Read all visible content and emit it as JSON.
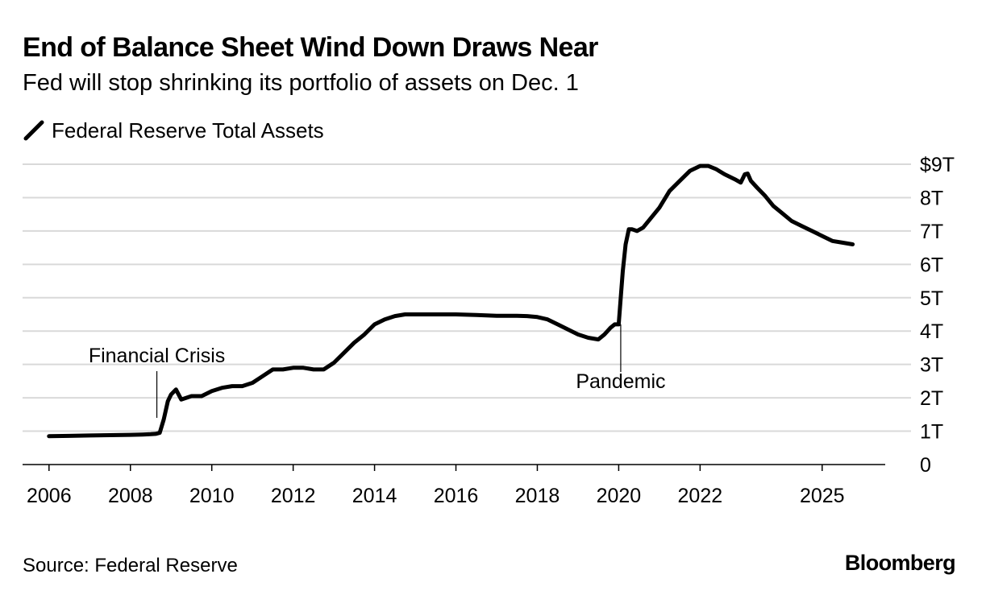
{
  "chart_data": {
    "type": "line",
    "title": "End of Balance Sheet Wind Down Draws Near",
    "subtitle": "Fed will stop shrinking its portfolio of assets on Dec. 1",
    "legend": [
      "Federal Reserve Total Assets"
    ],
    "legend_position": "top-left",
    "grid": true,
    "xlabel": "",
    "ylabel": "",
    "x_ticks": [
      {
        "value": 2006,
        "label": "2006"
      },
      {
        "value": 2008,
        "label": "2008"
      },
      {
        "value": 2010,
        "label": "2010"
      },
      {
        "value": 2012,
        "label": "2012"
      },
      {
        "value": 2014,
        "label": "2014"
      },
      {
        "value": 2016,
        "label": "2016"
      },
      {
        "value": 2018,
        "label": "2018"
      },
      {
        "value": 2020,
        "label": "2020"
      },
      {
        "value": 2022,
        "label": "2022"
      },
      {
        "value": 2025,
        "label": "2025"
      }
    ],
    "y_ticks": [
      {
        "value": 0,
        "label": "0"
      },
      {
        "value": 1,
        "label": "1T"
      },
      {
        "value": 2,
        "label": "2T"
      },
      {
        "value": 3,
        "label": "3T"
      },
      {
        "value": 4,
        "label": "4T"
      },
      {
        "value": 5,
        "label": "5T"
      },
      {
        "value": 6,
        "label": "6T"
      },
      {
        "value": 7,
        "label": "7T"
      },
      {
        "value": 8,
        "label": "8T"
      },
      {
        "value": 9,
        "label": "$9T"
      }
    ],
    "xlim": [
      2005.35,
      2026.55
    ],
    "ylim": [
      0,
      9
    ],
    "series": [
      {
        "name": "Federal Reserve Total Assets",
        "x": [
          2006.0,
          2006.5,
          2007.0,
          2007.5,
          2008.0,
          2008.3,
          2008.5,
          2008.62,
          2008.72,
          2008.82,
          2008.92,
          2009.0,
          2009.12,
          2009.25,
          2009.5,
          2009.75,
          2010.0,
          2010.25,
          2010.5,
          2010.75,
          2011.0,
          2011.25,
          2011.5,
          2011.75,
          2012.0,
          2012.25,
          2012.5,
          2012.75,
          2013.0,
          2013.25,
          2013.5,
          2013.75,
          2014.0,
          2014.25,
          2014.5,
          2014.75,
          2015.0,
          2015.5,
          2016.0,
          2016.5,
          2017.0,
          2017.5,
          2017.75,
          2018.0,
          2018.25,
          2018.5,
          2018.75,
          2019.0,
          2019.25,
          2019.5,
          2019.65,
          2019.8,
          2019.9,
          2020.0,
          2020.1,
          2020.17,
          2020.25,
          2020.33,
          2020.45,
          2020.6,
          2020.8,
          2021.0,
          2021.25,
          2021.5,
          2021.75,
          2022.0,
          2022.2,
          2022.4,
          2022.6,
          2022.85,
          2023.0,
          2023.1,
          2023.17,
          2023.25,
          2023.4,
          2023.6,
          2023.8,
          2024.0,
          2024.25,
          2024.5,
          2024.75,
          2025.0,
          2025.25,
          2025.5,
          2025.75
        ],
        "values": [
          0.85,
          0.86,
          0.87,
          0.88,
          0.89,
          0.9,
          0.91,
          0.92,
          0.95,
          1.35,
          1.9,
          2.1,
          2.25,
          1.95,
          2.05,
          2.05,
          2.2,
          2.3,
          2.35,
          2.35,
          2.45,
          2.65,
          2.85,
          2.85,
          2.9,
          2.9,
          2.85,
          2.85,
          3.05,
          3.35,
          3.65,
          3.9,
          4.2,
          4.35,
          4.45,
          4.5,
          4.5,
          4.5,
          4.5,
          4.48,
          4.46,
          4.46,
          4.45,
          4.42,
          4.35,
          4.2,
          4.05,
          3.9,
          3.8,
          3.75,
          3.9,
          4.1,
          4.2,
          4.2,
          5.8,
          6.6,
          7.05,
          7.05,
          7.0,
          7.1,
          7.4,
          7.7,
          8.2,
          8.5,
          8.8,
          8.95,
          8.95,
          8.85,
          8.7,
          8.55,
          8.45,
          8.7,
          8.72,
          8.5,
          8.3,
          8.05,
          7.75,
          7.55,
          7.3,
          7.15,
          7.0,
          6.85,
          6.7,
          6.65,
          6.6
        ]
      }
    ],
    "annotations": [
      {
        "label": "Financial Crisis",
        "x": 2008.65,
        "y": 1.4
      },
      {
        "label": "Pandemic",
        "x": 2020.05,
        "y": 4.2
      }
    ]
  },
  "source": "Source: Federal Reserve",
  "brand": "Bloomberg",
  "colors": {
    "line": "#000000",
    "grid": "#d9d9d9",
    "axis": "#000000",
    "background": "#ffffff"
  }
}
